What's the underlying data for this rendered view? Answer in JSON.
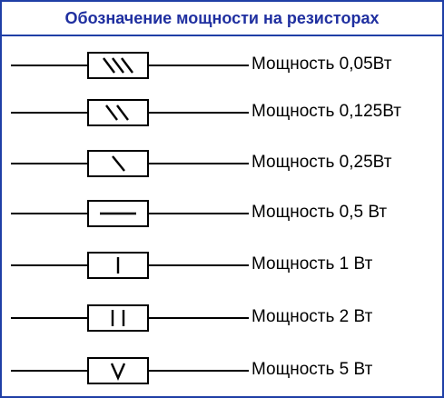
{
  "title": "Обозначение мощности на резисторах",
  "colors": {
    "accent": "#1f2fa0",
    "line": "#000000"
  },
  "items": [
    {
      "label": "Мощность 0,05Вт",
      "mark": "triple-slash"
    },
    {
      "label": "Мощность 0,125Вт",
      "mark": "double-slash"
    },
    {
      "label": "Мощность 0,25Вт",
      "mark": "single-slash"
    },
    {
      "label": "Мощность 0,5 Вт",
      "mark": "horizontal-bar"
    },
    {
      "label": "Мощность 1 Вт",
      "mark": "roman-one"
    },
    {
      "label": "Мощность 2 Вт",
      "mark": "roman-two"
    },
    {
      "label": "Мощность 5 Вт",
      "mark": "roman-five"
    }
  ]
}
